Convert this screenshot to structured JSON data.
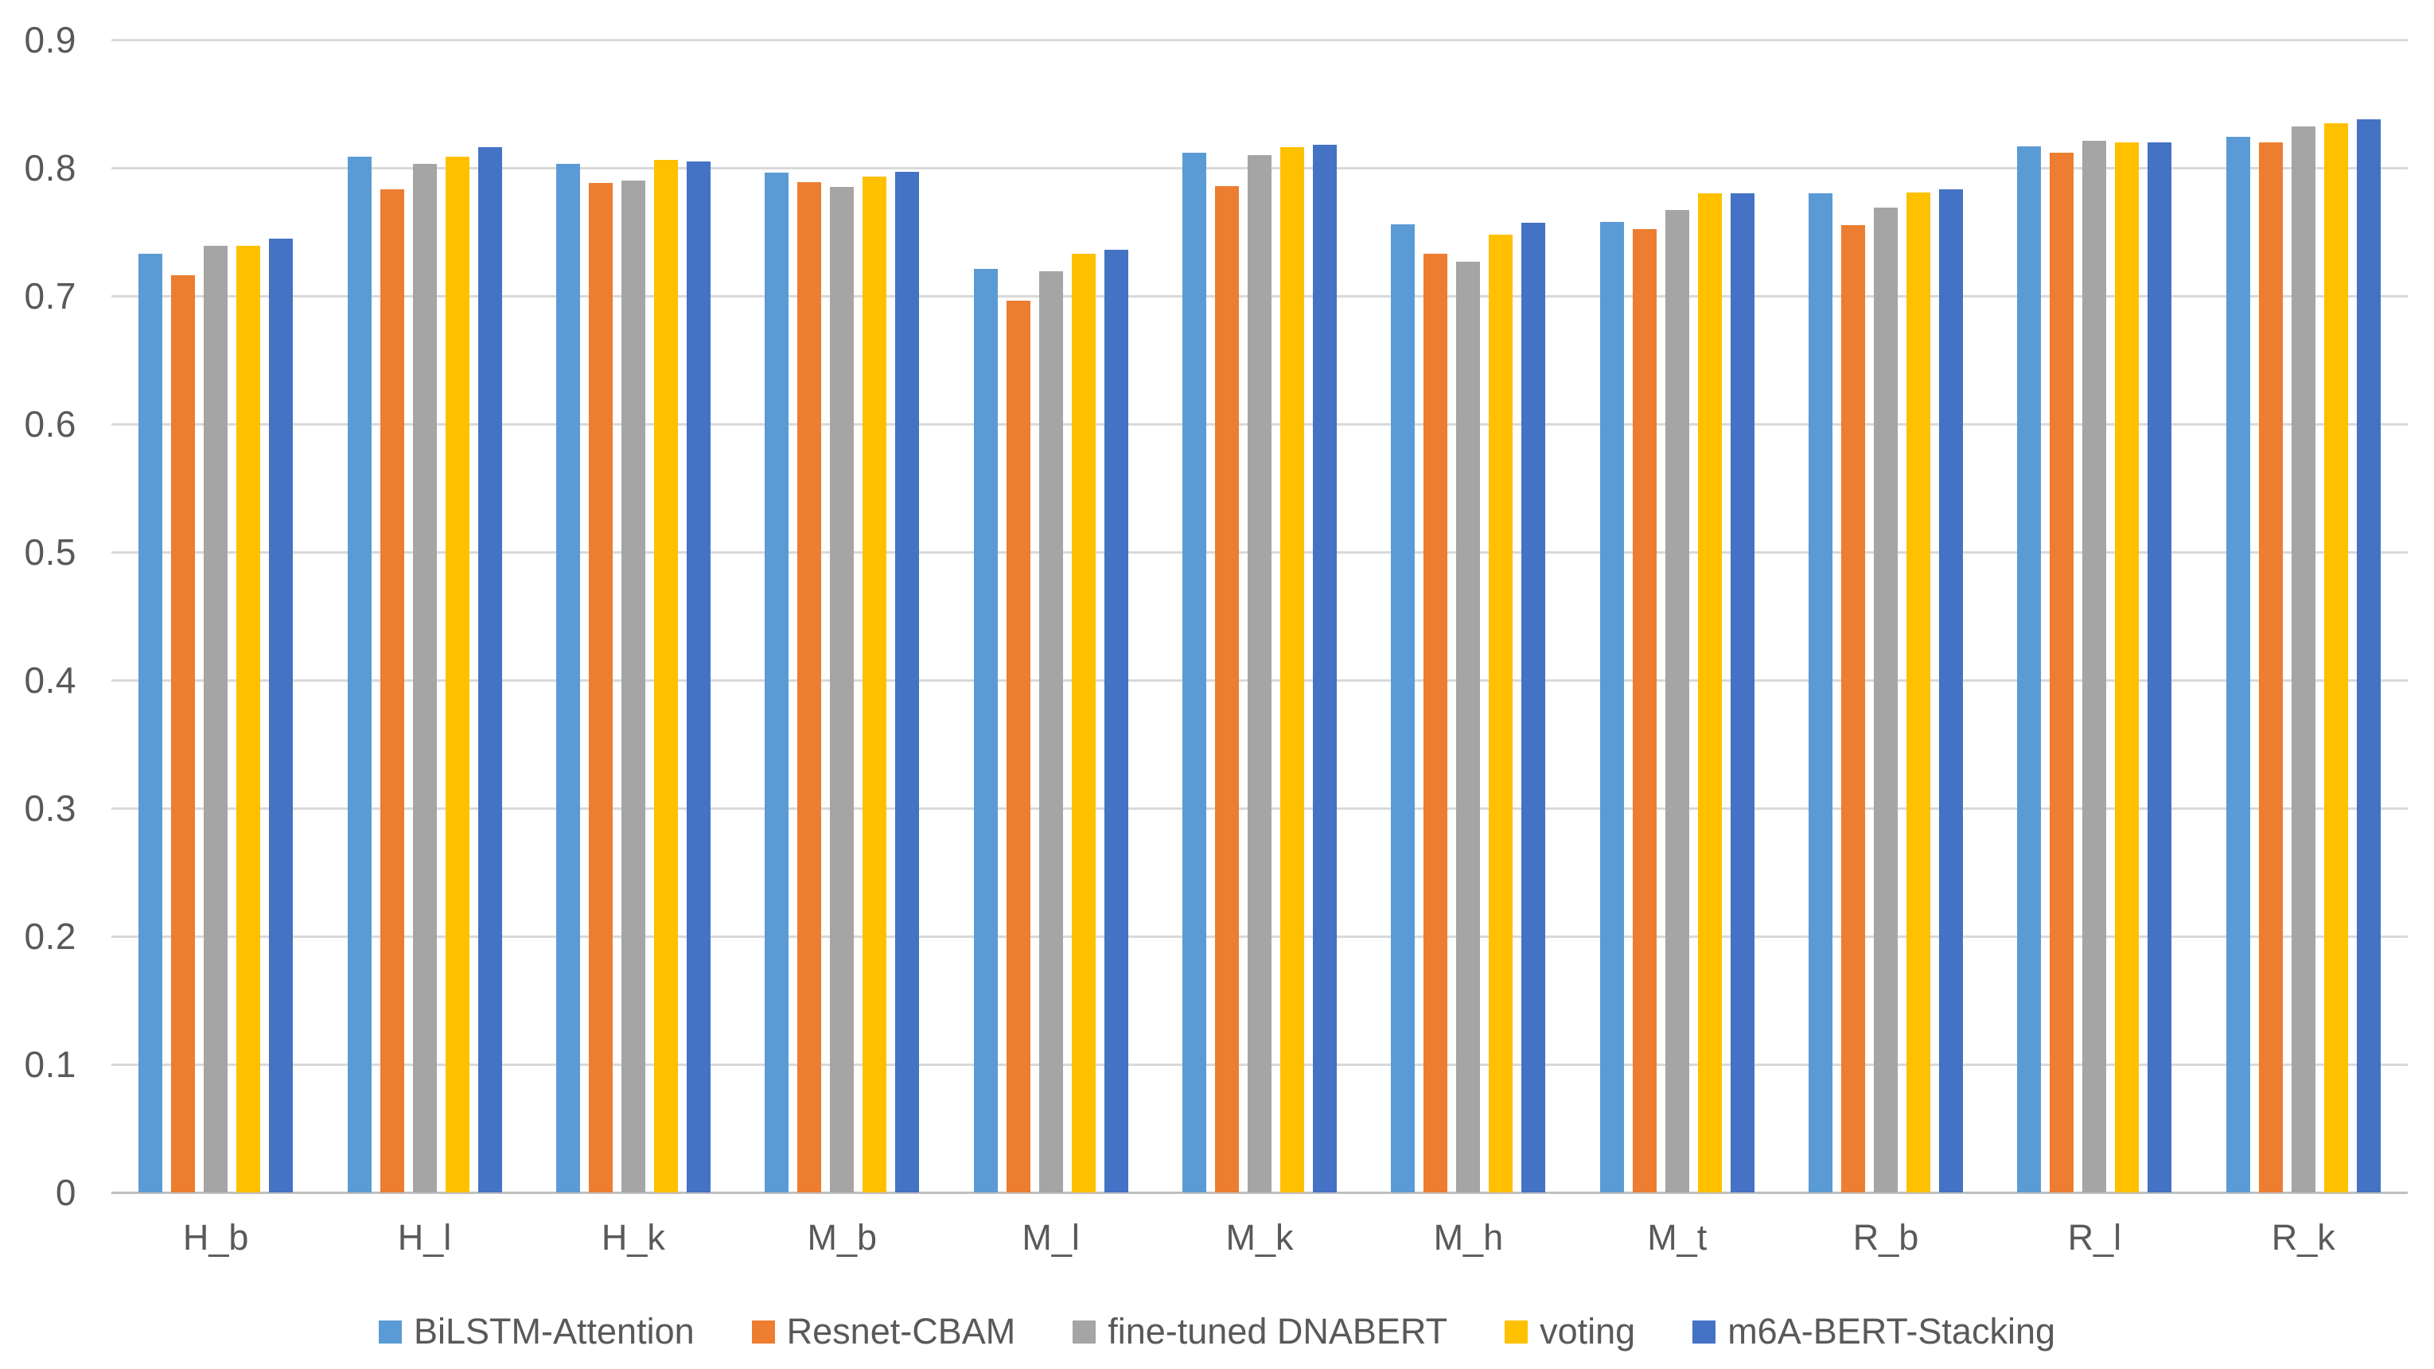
{
  "chart_data": {
    "type": "bar",
    "title": "",
    "categories": [
      "H_b",
      "H_l",
      "H_k",
      "M_b",
      "M_l",
      "M_k",
      "M_h",
      "M_t",
      "R_b",
      "R_l",
      "R_k"
    ],
    "series": [
      {
        "name": "BiLSTM-Attention",
        "color": "#5B9BD5",
        "values": [
          0.733,
          0.809,
          0.803,
          0.796,
          0.721,
          0.812,
          0.756,
          0.758,
          0.78,
          0.817,
          0.824
        ]
      },
      {
        "name": "Resnet-CBAM",
        "color": "#ED7D31",
        "values": [
          0.716,
          0.783,
          0.788,
          0.789,
          0.696,
          0.786,
          0.733,
          0.752,
          0.755,
          0.812,
          0.82
        ]
      },
      {
        "name": "fine-tuned DNABERT",
        "color": "#A5A5A5",
        "values": [
          0.739,
          0.803,
          0.79,
          0.785,
          0.719,
          0.81,
          0.727,
          0.767,
          0.769,
          0.821,
          0.832
        ]
      },
      {
        "name": "voting",
        "color": "#FFC000",
        "values": [
          0.739,
          0.809,
          0.806,
          0.793,
          0.733,
          0.816,
          0.748,
          0.78,
          0.781,
          0.82,
          0.835
        ]
      },
      {
        "name": "m6A-BERT-Stacking",
        "color": "#4472C4",
        "values": [
          0.745,
          0.816,
          0.805,
          0.797,
          0.736,
          0.818,
          0.757,
          0.78,
          0.783,
          0.82,
          0.838
        ]
      }
    ],
    "ylim": [
      0,
      0.9
    ],
    "ytick_labels": [
      "0",
      "0.1",
      "0.2",
      "0.3",
      "0.4",
      "0.5",
      "0.6",
      "0.7",
      "0.8",
      "0.9"
    ],
    "grid": true,
    "legend_position": "bottom",
    "axis_text_color": "#595959",
    "gridline_color": "#D9D9D9",
    "baseline_color": "#BFBFBF",
    "background": "#FFFFFF"
  }
}
